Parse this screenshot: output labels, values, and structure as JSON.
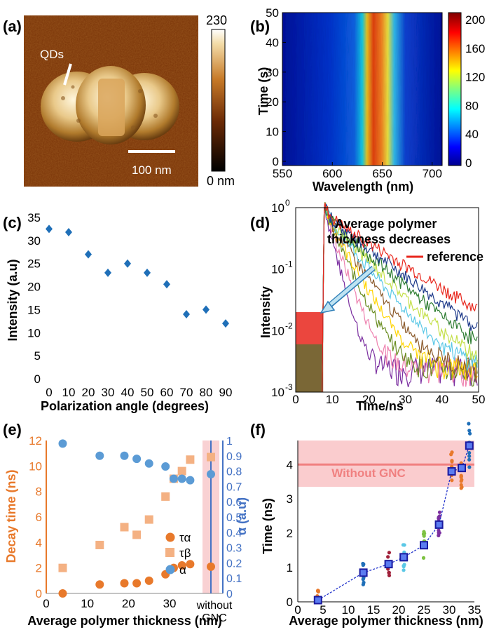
{
  "figure": {
    "panels": {
      "a": {
        "label": "(a)",
        "callout": "QDs",
        "scalebar": "100 nm",
        "cb_max": "230",
        "cb_min": "0 nm"
      },
      "b": {
        "label": "(b)",
        "ylabel": "Time (s)",
        "xlabel": "Wavelength (nm)",
        "xticks": [
          "550",
          "600",
          "650",
          "700"
        ],
        "yticks": [
          "0",
          "10",
          "20",
          "30",
          "40",
          "50"
        ],
        "cbticks": [
          "0",
          "40",
          "80",
          "120",
          "160",
          "200"
        ]
      },
      "c": {
        "label": "(c)",
        "ylabel": "Intensity (a.u)",
        "xlabel": "Polarization angle (degrees)",
        "xticks": [
          "0",
          "10",
          "20",
          "30",
          "40",
          "50",
          "60",
          "70",
          "80",
          "90"
        ],
        "yticks": [
          "0",
          "5",
          "10",
          "15",
          "20",
          "25",
          "30",
          "35"
        ]
      },
      "d": {
        "label": "(d)",
        "ylabel": "Intensity",
        "xlabel": "Time/ns",
        "annotation_line1": "Average polymer",
        "annotation_line2": "thickness decreases",
        "legend": "reference",
        "xticks": [
          "0",
          "10",
          "20",
          "30",
          "40",
          "50"
        ]
      },
      "e": {
        "label": "(e)",
        "ylabel_left": "Decay time (ns)",
        "ylabel_right": "α (a.u)",
        "xlabel": "Average polymer thickness (nm)",
        "xticks": [
          "0",
          "10",
          "20",
          "30"
        ],
        "without_line1": "without",
        "without_line2": "GNC",
        "legend": [
          "τα",
          "τβ",
          "α"
        ],
        "yticks_left": [
          "0",
          "2",
          "4",
          "6",
          "8",
          "10",
          "12"
        ],
        "yticks_right": [
          "0",
          "0.1",
          "0.2",
          "0.3",
          "0.4",
          "0.5",
          "0.6",
          "0.7",
          "0.8",
          "0.9",
          "1"
        ]
      },
      "f": {
        "label": "(f)",
        "ylabel": "Time (ns)",
        "xlabel": "Average polymer thickness (nm)",
        "band_label": "Without GNC",
        "xticks": [
          "0",
          "5",
          "10",
          "15",
          "20",
          "25",
          "30",
          "35"
        ],
        "yticks": [
          "0",
          "1",
          "2",
          "3",
          "4"
        ]
      }
    }
  },
  "chart_data": [
    {
      "type": "heatmap",
      "panel": "a",
      "colorbar_range": [
        0,
        230
      ]
    },
    {
      "type": "heatmap",
      "panel": "b",
      "x_range": [
        550,
        710
      ],
      "y_range": [
        0,
        50
      ],
      "colorbar_range": [
        0,
        210
      ]
    },
    {
      "type": "scatter",
      "panel": "c",
      "x": [
        0,
        10,
        20,
        30,
        40,
        50,
        60,
        70,
        80,
        90
      ],
      "y": [
        32.5,
        31.8,
        27,
        23,
        25,
        23,
        20.5,
        14,
        15,
        12
      ],
      "xlim": [
        0,
        90
      ],
      "ylim": [
        0,
        35
      ],
      "color": "#1f6fb8"
    },
    {
      "type": "line",
      "panel": "d",
      "log_y": true,
      "xlim": [
        0,
        50
      ],
      "ylim": [
        0.001,
        1
      ],
      "series": [
        {
          "name": "reference",
          "color": "#e8261c",
          "tau": 11.5
        },
        {
          "color": "#1e3a8a",
          "tau": 9.5
        },
        {
          "color": "#2e7d32",
          "tau": 8.2
        },
        {
          "color": "#c4e04a",
          "tau": 7.0
        },
        {
          "color": "#5bc8e6",
          "tau": 6.0
        },
        {
          "color": "#8b5a2b",
          "tau": 5.0
        },
        {
          "color": "#ffd400",
          "tau": 4.2
        },
        {
          "color": "#6b8e23",
          "tau": 3.5
        },
        {
          "color": "#ee82b0",
          "tau": 2.8
        },
        {
          "color": "#7b2fa0",
          "tau": 2.0
        }
      ]
    },
    {
      "type": "scatter",
      "panel": "e",
      "series": [
        {
          "name": "τα",
          "color": "#e8792b",
          "x": [
            4,
            13,
            19,
            22,
            25,
            29,
            31,
            33,
            35
          ],
          "y": [
            0,
            0.7,
            0.8,
            0.8,
            1.0,
            1.5,
            2.0,
            2.2,
            2.3
          ]
        },
        {
          "name": "τβ",
          "color": "#f4b183",
          "x": [
            4,
            13,
            19,
            22,
            25,
            29,
            31,
            33,
            35
          ],
          "y": [
            2.0,
            3.8,
            5.2,
            4.6,
            5.8,
            7.6,
            9.0,
            9.6,
            10.5
          ]
        },
        {
          "name": "α",
          "color": "#5b9bd5",
          "axis": "right",
          "x": [
            4,
            13,
            19,
            22,
            25,
            29,
            31,
            33,
            35
          ],
          "y": [
            0.98,
            0.9,
            0.9,
            0.88,
            0.85,
            0.83,
            0.75,
            0.75,
            0.74
          ]
        }
      ],
      "without_gnc": {
        "τα": 2.1,
        "τβ": 10.7,
        "α": 0.78
      },
      "xlim": [
        0,
        38
      ],
      "ylim_left": [
        0,
        12
      ],
      "ylim_right": [
        0,
        1
      ]
    },
    {
      "type": "scatter",
      "panel": "f",
      "means": {
        "x": [
          4,
          13,
          18,
          21,
          25,
          28,
          30.5,
          32.5,
          34
        ],
        "y": [
          0.05,
          0.85,
          1.1,
          1.3,
          1.65,
          2.25,
          3.8,
          3.9,
          4.55
        ]
      },
      "reference_band": {
        "center": 4.0,
        "low": 3.35,
        "high": 4.7
      },
      "xlim": [
        0,
        35
      ],
      "ylim": [
        0,
        4.7
      ]
    }
  ]
}
